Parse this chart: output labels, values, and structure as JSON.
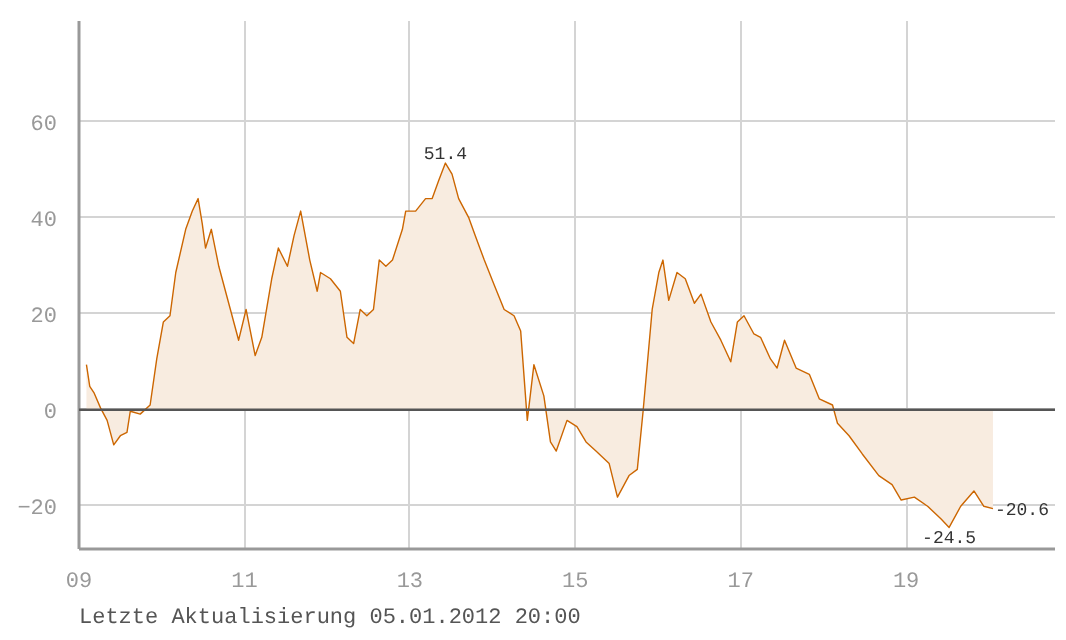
{
  "chart_data": {
    "type": "area",
    "xlim": [
      9,
      20.8
    ],
    "xticks": [
      {
        "value": 9,
        "label": "09"
      },
      11,
      13,
      15,
      17,
      19
    ],
    "ylim": [
      -29,
      81
    ],
    "yticks": [
      -20,
      0,
      20,
      40,
      60
    ],
    "grid": true,
    "ref_lines": [
      {
        "axis": "y",
        "value": 0,
        "color": "#555555"
      }
    ],
    "annotations": [
      "Letzte Aktualisierung 05.01.2012 20:00",
      {
        "text": "51.4",
        "x": 13.43,
        "y": 51.4
      },
      {
        "text": "-24.5",
        "x": 19.52,
        "y": -24.5
      },
      {
        "text": "-20.6",
        "x": 20.05,
        "y": -20.6
      }
    ],
    "series": [
      {
        "color": "#cc6600",
        "x": [
          9.09,
          9.13,
          9.18,
          9.26,
          9.34,
          9.42,
          9.5,
          9.58,
          9.62,
          9.74,
          9.86,
          9.94,
          10.02,
          10.1,
          10.17,
          10.29,
          10.37,
          10.44,
          10.49,
          10.53,
          10.6,
          10.69,
          10.81,
          10.93,
          11.02,
          11.13,
          11.21,
          11.33,
          11.41,
          11.52,
          11.6,
          11.68,
          11.79,
          11.88,
          11.92,
          12.04,
          12.16,
          12.24,
          12.32,
          12.4,
          12.48,
          12.56,
          12.63,
          12.71,
          12.79,
          12.91,
          12.95,
          13.07,
          13.19,
          13.27,
          13.35,
          13.43,
          13.51,
          13.59,
          13.71,
          13.79,
          13.9,
          14.02,
          14.14,
          14.26,
          14.34,
          14.42,
          14.5,
          14.62,
          14.7,
          14.77,
          14.9,
          15.02,
          15.13,
          15.25,
          15.41,
          15.51,
          15.65,
          15.75,
          15.82,
          15.93,
          16.01,
          16.06,
          16.13,
          16.23,
          16.33,
          16.44,
          16.52,
          16.64,
          16.76,
          16.88,
          16.96,
          17.04,
          17.16,
          17.24,
          17.36,
          17.44,
          17.53,
          17.67,
          17.83,
          17.95,
          18.11,
          18.17,
          18.31,
          18.47,
          18.67,
          18.83,
          18.94,
          19.1,
          19.26,
          19.42,
          19.52,
          19.66,
          19.82,
          19.94,
          20.05
        ],
        "values": [
          9.4,
          4.9,
          3.6,
          0.4,
          -2.2,
          -7.3,
          -5.4,
          -4.7,
          -0.3,
          -0.9,
          1.0,
          10.6,
          18.3,
          19.6,
          28.6,
          37.6,
          41.4,
          44.0,
          38.8,
          33.7,
          37.6,
          29.9,
          22.2,
          14.5,
          20.9,
          11.3,
          15.1,
          27.3,
          33.7,
          29.9,
          36.3,
          41.4,
          31.2,
          24.7,
          28.6,
          27.3,
          24.7,
          15.1,
          13.8,
          20.9,
          19.6,
          20.9,
          31.2,
          29.9,
          31.2,
          37.6,
          41.4,
          41.4,
          44.0,
          44.0,
          47.8,
          51.4,
          49.1,
          44.0,
          40.1,
          36.3,
          31.2,
          26.0,
          20.9,
          19.6,
          16.4,
          -2.2,
          9.4,
          2.9,
          -6.7,
          -8.6,
          -2.2,
          -3.5,
          -6.7,
          -8.6,
          -11.2,
          -18.2,
          -13.7,
          -12.4,
          -0.3,
          20.9,
          28.6,
          31.2,
          22.8,
          28.6,
          27.3,
          22.2,
          24.1,
          18.3,
          14.5,
          10.0,
          18.3,
          19.6,
          15.8,
          15.1,
          10.6,
          8.7,
          14.5,
          8.7,
          7.4,
          2.3,
          1.0,
          -2.8,
          -5.4,
          -9.2,
          -13.7,
          -15.6,
          -18.8,
          -18.2,
          -20.1,
          -22.7,
          -24.5,
          -20.1,
          -16.9,
          -20.1,
          -20.6
        ]
      }
    ]
  }
}
